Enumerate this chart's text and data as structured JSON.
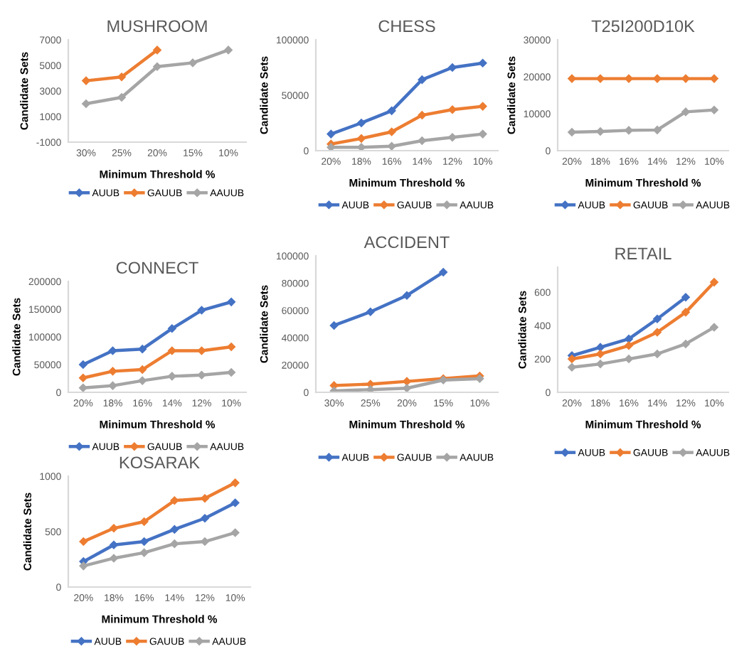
{
  "chart_data": [
    {
      "type": "line",
      "title": "MUSHROOM",
      "xlabel": "Minimum Threshold %",
      "ylabel": "Candidate Sets",
      "categories": [
        "30%",
        "25%",
        "20%",
        "15%",
        "10%"
      ],
      "ylim": [
        -1000,
        7000
      ],
      "yticks": [
        -1000,
        1000,
        3000,
        5000,
        7000
      ],
      "marker": "diamond",
      "legend": "bottom",
      "grid": false,
      "series": [
        {
          "name": "AUUB",
          "color": "#4472c4",
          "values": [
            null,
            null,
            null,
            null,
            null
          ]
        },
        {
          "name": "GAUUB",
          "color": "#ed7d31",
          "values": [
            3800,
            4100,
            6200,
            null,
            null
          ]
        },
        {
          "name": "AAUUB",
          "color": "#a5a5a5",
          "values": [
            2000,
            2500,
            4900,
            5200,
            6200
          ]
        }
      ]
    },
    {
      "type": "line",
      "title": "CHESS",
      "xlabel": "Minimum Threshold %",
      "ylabel": "Candidate Sets",
      "categories": [
        "20%",
        "18%",
        "16%",
        "14%",
        "12%",
        "10%"
      ],
      "ylim": [
        0,
        100000
      ],
      "yticks": [
        0,
        50000,
        100000
      ],
      "marker": "diamond",
      "legend": "bottom",
      "grid": false,
      "series": [
        {
          "name": "AUUB",
          "color": "#4472c4",
          "values": [
            15000,
            25000,
            36000,
            64000,
            75000,
            79000
          ]
        },
        {
          "name": "GAUUB",
          "color": "#ed7d31",
          "values": [
            6000,
            11000,
            17000,
            32000,
            37000,
            40000
          ]
        },
        {
          "name": "AAUUB",
          "color": "#a5a5a5",
          "values": [
            3000,
            3000,
            4000,
            9000,
            12000,
            15000
          ]
        }
      ]
    },
    {
      "type": "line",
      "title": "T25I200D10K",
      "xlabel": "Minimum Threshold %",
      "ylabel": "Candidate Sets",
      "categories": [
        "20%",
        "18%",
        "16%",
        "14%",
        "12%",
        "10%"
      ],
      "ylim": [
        0,
        30000
      ],
      "yticks": [
        0,
        10000,
        20000,
        30000
      ],
      "marker": "diamond",
      "legend": "bottom",
      "grid": false,
      "series": [
        {
          "name": "AUUB",
          "color": "#4472c4",
          "values": [
            null,
            null,
            null,
            null,
            null,
            null
          ]
        },
        {
          "name": "GAUUB",
          "color": "#ed7d31",
          "values": [
            19500,
            19500,
            19500,
            19500,
            19500,
            19500
          ]
        },
        {
          "name": "AAUUB",
          "color": "#a5a5a5",
          "values": [
            5000,
            5200,
            5500,
            5600,
            10500,
            11000
          ]
        }
      ]
    },
    {
      "type": "line",
      "title": "CONNECT",
      "xlabel": "Minimum Threshold %",
      "ylabel": "Candidate Sets",
      "categories": [
        "20%",
        "18%",
        "16%",
        "14%",
        "12%",
        "10%"
      ],
      "ylim": [
        0,
        200000
      ],
      "yticks": [
        0,
        50000,
        100000,
        150000,
        200000
      ],
      "marker": "diamond",
      "legend": "bottom",
      "grid": false,
      "series": [
        {
          "name": "AUUB",
          "color": "#4472c4",
          "values": [
            50000,
            75000,
            78000,
            115000,
            148000,
            163000
          ]
        },
        {
          "name": "GAUUB",
          "color": "#ed7d31",
          "values": [
            26000,
            38000,
            41000,
            75000,
            75000,
            82000
          ]
        },
        {
          "name": "AAUUB",
          "color": "#a5a5a5",
          "values": [
            8000,
            12000,
            21000,
            29000,
            31000,
            36000
          ]
        }
      ]
    },
    {
      "type": "line",
      "title": "ACCIDENT",
      "xlabel": "Minimum Threshold %",
      "ylabel": "Candidate Sets",
      "categories": [
        "30%",
        "25%",
        "20%",
        "15%",
        "10%"
      ],
      "ylim": [
        0,
        100000
      ],
      "yticks": [
        0,
        20000,
        40000,
        60000,
        80000,
        100000
      ],
      "marker": "diamond",
      "legend": "bottom",
      "grid": false,
      "series": [
        {
          "name": "AUUB",
          "color": "#4472c4",
          "values": [
            49000,
            59000,
            71000,
            88000,
            null
          ]
        },
        {
          "name": "GAUUB",
          "color": "#ed7d31",
          "values": [
            5000,
            6000,
            8000,
            10000,
            12000
          ]
        },
        {
          "name": "AAUUB",
          "color": "#a5a5a5",
          "values": [
            1000,
            2000,
            3000,
            9000,
            10000
          ]
        }
      ]
    },
    {
      "type": "line",
      "title": "RETAIL",
      "xlabel": "Minimum Threshold %",
      "ylabel": "Candidate Sets",
      "categories": [
        "20%",
        "18%",
        "16%",
        "14%",
        "12%",
        "10%"
      ],
      "ylim": [
        0,
        750
      ],
      "yticks": [
        0,
        200,
        400,
        600
      ],
      "marker": "diamond",
      "legend": "bottom",
      "grid": false,
      "series": [
        {
          "name": "AUUB",
          "color": "#4472c4",
          "values": [
            220,
            270,
            320,
            440,
            570,
            null
          ]
        },
        {
          "name": "GAUUB",
          "color": "#ed7d31",
          "values": [
            200,
            230,
            280,
            360,
            480,
            660
          ]
        },
        {
          "name": "AAUUB",
          "color": "#a5a5a5",
          "values": [
            150,
            170,
            200,
            230,
            290,
            390
          ]
        }
      ]
    },
    {
      "type": "line",
      "title": "KOSARAK",
      "xlabel": "Minimum Threshold %",
      "ylabel": "Candidate Sets",
      "categories": [
        "20%",
        "18%",
        "16%",
        "14%",
        "12%",
        "10%"
      ],
      "ylim": [
        0,
        1000
      ],
      "yticks": [
        0,
        500,
        1000
      ],
      "marker": "diamond",
      "legend": "bottom",
      "grid": false,
      "series": [
        {
          "name": "AUUB",
          "color": "#4472c4",
          "values": [
            230,
            380,
            410,
            520,
            620,
            760
          ]
        },
        {
          "name": "GAUUB",
          "color": "#ed7d31",
          "values": [
            410,
            530,
            590,
            780,
            800,
            940
          ]
        },
        {
          "name": "AAUUB",
          "color": "#a5a5a5",
          "values": [
            190,
            260,
            310,
            390,
            410,
            490
          ]
        }
      ]
    }
  ]
}
